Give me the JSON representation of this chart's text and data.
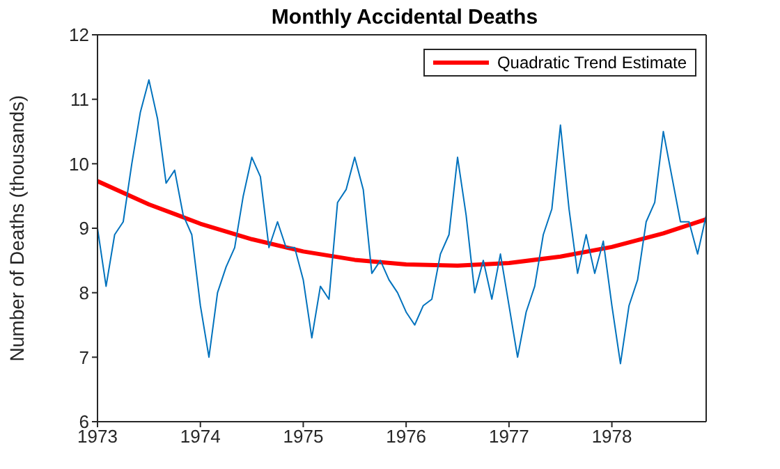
{
  "chart_data": {
    "type": "line",
    "title": "Monthly Accidental Deaths",
    "ylabel": "Number of Deaths (thousands)",
    "x": [
      "1973-01",
      "1973-02",
      "1973-03",
      "1973-04",
      "1973-05",
      "1973-06",
      "1973-07",
      "1973-08",
      "1973-09",
      "1973-10",
      "1973-11",
      "1973-12",
      "1974-01",
      "1974-02",
      "1974-03",
      "1974-04",
      "1974-05",
      "1974-06",
      "1974-07",
      "1974-08",
      "1974-09",
      "1974-10",
      "1974-11",
      "1974-12",
      "1975-01",
      "1975-02",
      "1975-03",
      "1975-04",
      "1975-05",
      "1975-06",
      "1975-07",
      "1975-08",
      "1975-09",
      "1975-10",
      "1975-11",
      "1975-12",
      "1976-01",
      "1976-02",
      "1976-03",
      "1976-04",
      "1976-05",
      "1976-06",
      "1976-07",
      "1976-08",
      "1976-09",
      "1976-10",
      "1976-11",
      "1976-12",
      "1977-01",
      "1977-02",
      "1977-03",
      "1977-04",
      "1977-05",
      "1977-06",
      "1977-07",
      "1977-08",
      "1977-09",
      "1977-10",
      "1977-11",
      "1977-12",
      "1978-01",
      "1978-02",
      "1978-03",
      "1978-04",
      "1978-05",
      "1978-06",
      "1978-07",
      "1978-08",
      "1978-09",
      "1978-10",
      "1978-11",
      "1978-12"
    ],
    "series": [
      {
        "color": "#0072bd",
        "values": [
          9.0,
          8.1,
          8.9,
          9.1,
          10.0,
          10.8,
          11.3,
          10.7,
          9.7,
          9.9,
          9.2,
          8.9,
          7.8,
          7.0,
          8.0,
          8.4,
          8.7,
          9.5,
          10.1,
          9.8,
          8.7,
          9.1,
          8.7,
          8.7,
          8.2,
          7.3,
          8.1,
          7.9,
          9.4,
          9.6,
          10.1,
          9.6,
          8.3,
          8.5,
          8.2,
          8.0,
          7.7,
          7.5,
          7.8,
          7.9,
          8.6,
          8.9,
          10.1,
          9.2,
          8.0,
          8.5,
          7.9,
          8.6,
          7.8,
          7.0,
          7.7,
          8.1,
          8.9,
          9.3,
          10.6,
          9.3,
          8.3,
          8.9,
          8.3,
          8.8,
          7.8,
          6.9,
          7.8,
          8.2,
          9.1,
          9.4,
          10.5,
          9.8,
          9.1,
          9.1,
          8.6,
          9.2
        ]
      },
      {
        "name": "Quadratic Trend Estimate",
        "type": "line",
        "color": "#ff0000",
        "x": [
          "1973-01",
          "1973-07",
          "1974-01",
          "1974-07",
          "1975-01",
          "1975-07",
          "1976-01",
          "1976-07",
          "1977-01",
          "1977-07",
          "1978-01",
          "1978-07",
          "1978-12"
        ],
        "values": [
          9.73,
          9.37,
          9.07,
          8.83,
          8.64,
          8.51,
          8.44,
          8.42,
          8.46,
          8.56,
          8.71,
          8.92,
          9.14
        ]
      }
    ],
    "xlim": [
      "1973-01",
      "1978-12"
    ],
    "xticks": [
      {
        "value": "1973-01",
        "label": "1973"
      },
      {
        "value": "1974-01",
        "label": "1974"
      },
      {
        "value": "1975-01",
        "label": "1975"
      },
      {
        "value": "1976-01",
        "label": "1976"
      },
      {
        "value": "1977-01",
        "label": "1977"
      },
      {
        "value": "1978-01",
        "label": "1978"
      }
    ],
    "ylim": [
      6,
      12
    ],
    "yticks": [
      6,
      7,
      8,
      9,
      10,
      11,
      12
    ],
    "legend": "top right",
    "grid": false,
    "marker": "none",
    "line_style": "solid"
  }
}
